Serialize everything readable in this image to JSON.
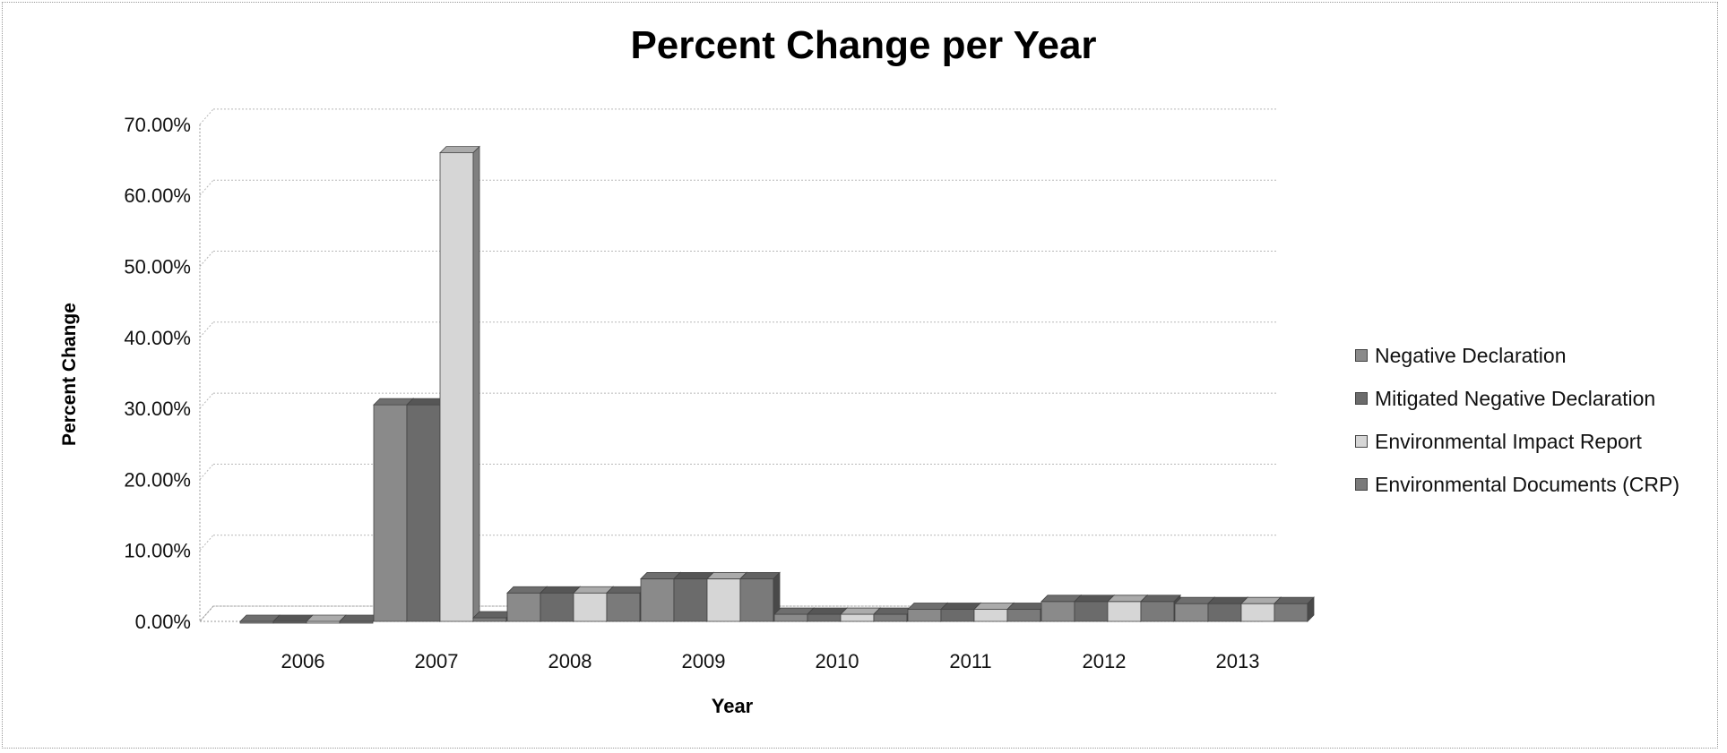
{
  "chart_data": {
    "type": "bar",
    "title": "Percent Change per Year",
    "xlabel": "Year",
    "ylabel": "Percent Change",
    "categories": [
      "2006",
      "2007",
      "2008",
      "2009",
      "2010",
      "2011",
      "2012",
      "2013"
    ],
    "series": [
      {
        "name": "Negative Declaration",
        "values": [
          0.0,
          30.5,
          4.0,
          6.0,
          1.0,
          1.7,
          2.8,
          2.5
        ]
      },
      {
        "name": "Mitigated Negative Declaration",
        "values": [
          0.0,
          30.5,
          4.0,
          6.0,
          1.0,
          1.7,
          2.8,
          2.5
        ]
      },
      {
        "name": "Environmental Impact Report",
        "values": [
          0.0,
          66.0,
          4.0,
          6.0,
          1.0,
          1.7,
          2.8,
          2.5
        ]
      },
      {
        "name": "Environmental Documents (CRP)",
        "values": [
          0.0,
          0.5,
          4.0,
          6.0,
          1.0,
          1.7,
          2.8,
          2.5
        ]
      }
    ],
    "ylim": [
      0,
      70
    ],
    "yticks": [
      "0.00%",
      "10.00%",
      "20.00%",
      "30.00%",
      "40.00%",
      "50.00%",
      "60.00%",
      "70.00%"
    ],
    "grid": true,
    "legend_position": "right",
    "colors": [
      "#8a8a8a",
      "#6b6b6b",
      "#d6d6d6",
      "#7a7a7a"
    ]
  }
}
